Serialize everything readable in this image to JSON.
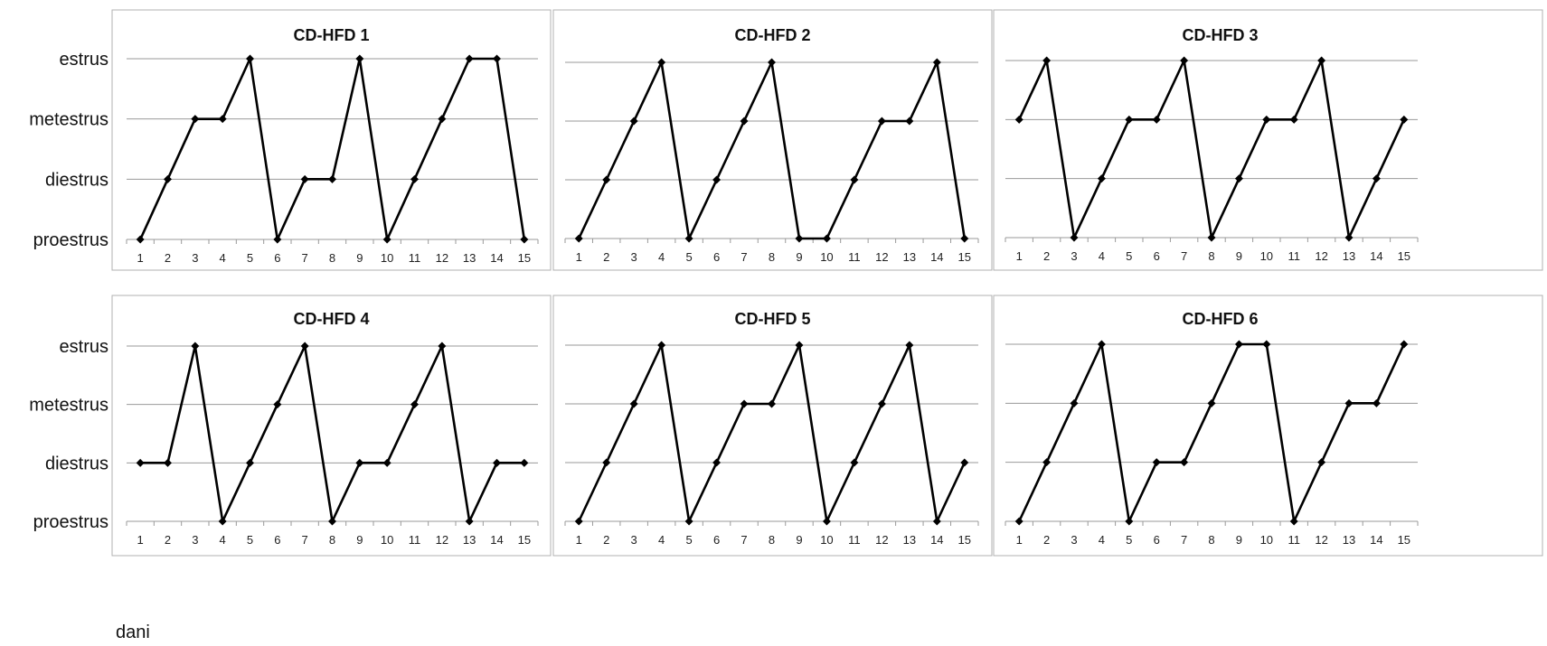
{
  "chart_data": {
    "type": "line",
    "xlabel": "dani",
    "y_categories": [
      "proestrus",
      "diestrus",
      "metestrus",
      "estrus"
    ],
    "x": [
      1,
      2,
      3,
      4,
      5,
      6,
      7,
      8,
      9,
      10,
      11,
      12,
      13,
      14,
      15
    ],
    "grid": true,
    "legend": "none",
    "panels": [
      {
        "title": "CD-HFD 1",
        "values": [
          0,
          1,
          2,
          2,
          3,
          0,
          1,
          1,
          3,
          0,
          1,
          2,
          3,
          3,
          0
        ]
      },
      {
        "title": "CD-HFD 2",
        "values": [
          0,
          1,
          2,
          3,
          0,
          1,
          2,
          3,
          0,
          0,
          1,
          2,
          2,
          3,
          0
        ]
      },
      {
        "title": "CD-HFD 3",
        "values": [
          2,
          3,
          0,
          1,
          2,
          2,
          3,
          0,
          1,
          2,
          2,
          3,
          0,
          1,
          2
        ]
      },
      {
        "title": "CD-HFD 4",
        "values": [
          1,
          1,
          3,
          0,
          1,
          2,
          3,
          0,
          1,
          1,
          2,
          3,
          0,
          1,
          1
        ]
      },
      {
        "title": "CD-HFD 5",
        "values": [
          0,
          1,
          2,
          3,
          0,
          1,
          2,
          2,
          3,
          0,
          1,
          2,
          3,
          0,
          1
        ]
      },
      {
        "title": "CD-HFD 6",
        "values": [
          0,
          1,
          2,
          3,
          0,
          1,
          1,
          2,
          3,
          3,
          0,
          1,
          2,
          2,
          3
        ]
      }
    ]
  },
  "colors": {
    "line": "#000000",
    "grid": "#9a9a9a",
    "frame": "#b0b0b0"
  }
}
